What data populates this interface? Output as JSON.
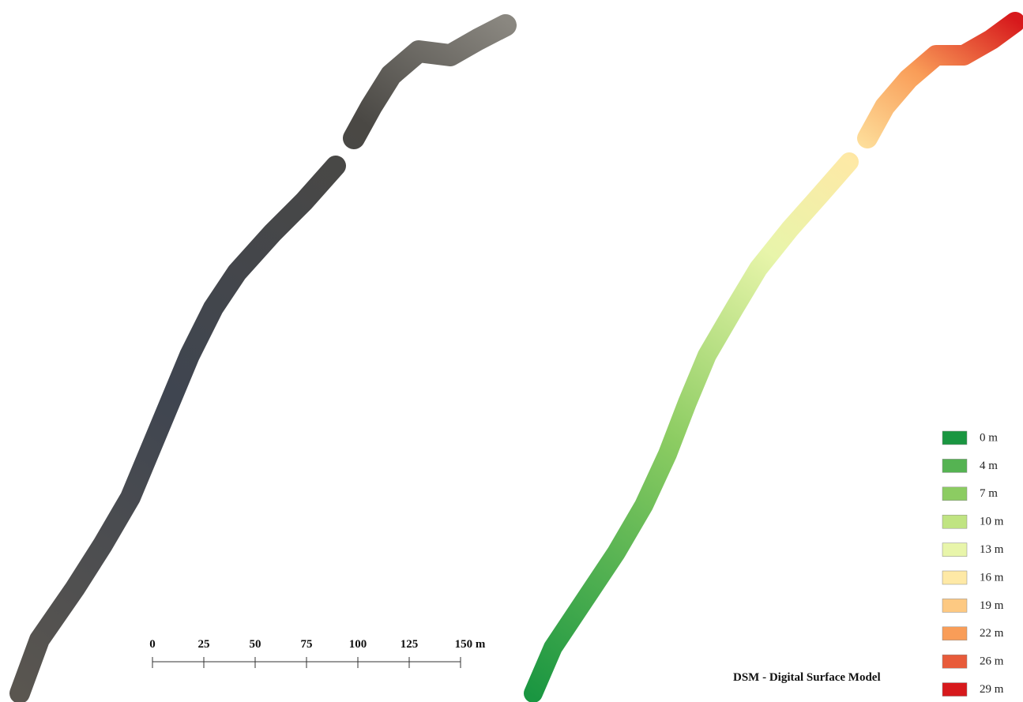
{
  "map": {
    "title": "DSM - Digital Surface Model",
    "scale_bar": [
      "0",
      "25",
      "50",
      "75",
      "100",
      "125",
      "150 m"
    ],
    "legend": [
      {
        "label": "0 m",
        "color": "#1a9641"
      },
      {
        "label": "4 m",
        "color": "#55b352"
      },
      {
        "label": "7 m",
        "color": "#8ccc62"
      },
      {
        "label": "10 m",
        "color": "#c0e482"
      },
      {
        "label": "13 m",
        "color": "#e8f5aa"
      },
      {
        "label": "16 m",
        "color": "#fee9a6"
      },
      {
        "label": "19 m",
        "color": "#fdc982"
      },
      {
        "label": "22 m",
        "color": "#f99d58"
      },
      {
        "label": "26 m",
        "color": "#e85b3a"
      },
      {
        "label": "29 m",
        "color": "#d7191c"
      }
    ]
  }
}
